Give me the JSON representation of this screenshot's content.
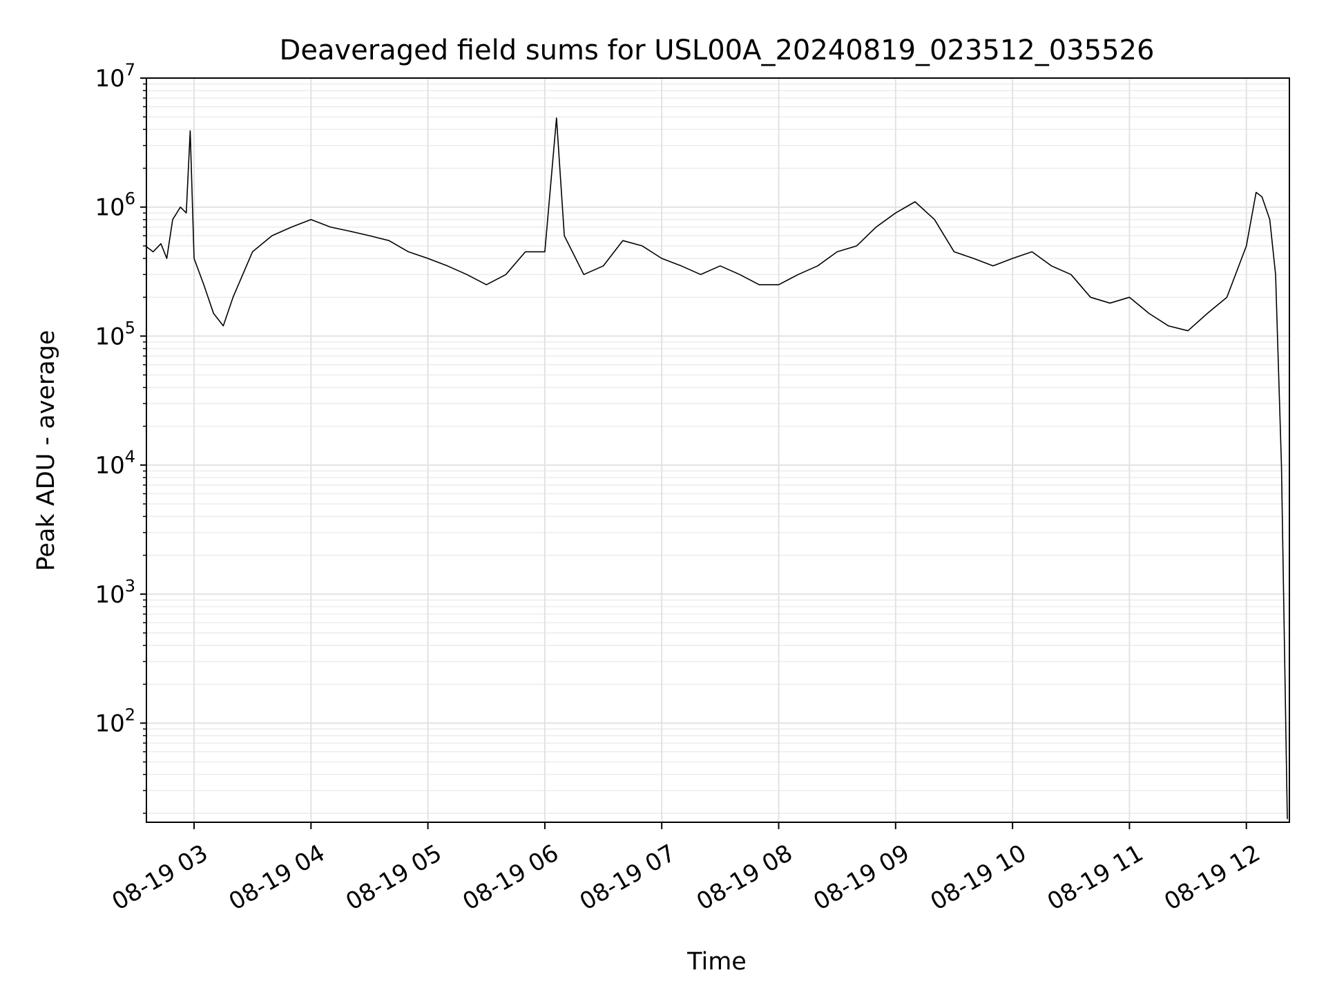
{
  "chart_data": {
    "type": "line",
    "title": "Deaveraged field sums for USL00A_20240819_023512_035526",
    "xlabel": "Time",
    "ylabel": "Peak ADU - average",
    "y_scale": "log",
    "ylim": [
      18,
      10000000
    ],
    "xlim": [
      "2024-08-19 02:35",
      "2024-08-19 12:25"
    ],
    "grid": "on (major and minor)",
    "x_tick_labels": [
      "08-19 03",
      "08-19 04",
      "08-19 05",
      "08-19 06",
      "08-19 07",
      "08-19 08",
      "08-19 09",
      "08-19 10",
      "08-19 11",
      "08-19 12"
    ],
    "y_tick_labels": [
      {
        "base": "10",
        "exp": "2"
      },
      {
        "base": "10",
        "exp": "3"
      },
      {
        "base": "10",
        "exp": "4"
      },
      {
        "base": "10",
        "exp": "5"
      },
      {
        "base": "10",
        "exp": "6"
      },
      {
        "base": "10",
        "exp": "7"
      }
    ],
    "series": [
      {
        "color": "#000000",
        "points": [
          [
            "2024-08-19 02:35",
            500000
          ],
          [
            "2024-08-19 02:39",
            450000
          ],
          [
            "2024-08-19 02:43",
            520000
          ],
          [
            "2024-08-19 02:46",
            400000
          ],
          [
            "2024-08-19 02:49",
            800000
          ],
          [
            "2024-08-19 02:53",
            1000000
          ],
          [
            "2024-08-19 02:56",
            900000
          ],
          [
            "2024-08-19 02:58",
            3900000
          ],
          [
            "2024-08-19 03:00",
            400000
          ],
          [
            "2024-08-19 03:05",
            250000
          ],
          [
            "2024-08-19 03:10",
            150000
          ],
          [
            "2024-08-19 03:15",
            120000
          ],
          [
            "2024-08-19 03:20",
            200000
          ],
          [
            "2024-08-19 03:25",
            300000
          ],
          [
            "2024-08-19 03:30",
            450000
          ],
          [
            "2024-08-19 03:40",
            600000
          ],
          [
            "2024-08-19 03:50",
            700000
          ],
          [
            "2024-08-19 04:00",
            800000
          ],
          [
            "2024-08-19 04:10",
            700000
          ],
          [
            "2024-08-19 04:20",
            650000
          ],
          [
            "2024-08-19 04:30",
            600000
          ],
          [
            "2024-08-19 04:40",
            550000
          ],
          [
            "2024-08-19 04:50",
            450000
          ],
          [
            "2024-08-19 05:00",
            400000
          ],
          [
            "2024-08-19 05:10",
            350000
          ],
          [
            "2024-08-19 05:20",
            300000
          ],
          [
            "2024-08-19 05:30",
            250000
          ],
          [
            "2024-08-19 05:40",
            300000
          ],
          [
            "2024-08-19 05:50",
            450000
          ],
          [
            "2024-08-19 06:00",
            450000
          ],
          [
            "2024-08-19 06:06",
            4900000
          ],
          [
            "2024-08-19 06:10",
            600000
          ],
          [
            "2024-08-19 06:20",
            300000
          ],
          [
            "2024-08-19 06:30",
            350000
          ],
          [
            "2024-08-19 06:40",
            550000
          ],
          [
            "2024-08-19 06:50",
            500000
          ],
          [
            "2024-08-19 07:00",
            400000
          ],
          [
            "2024-08-19 07:10",
            350000
          ],
          [
            "2024-08-19 07:20",
            300000
          ],
          [
            "2024-08-19 07:30",
            350000
          ],
          [
            "2024-08-19 07:40",
            300000
          ],
          [
            "2024-08-19 07:50",
            250000
          ],
          [
            "2024-08-19 08:00",
            250000
          ],
          [
            "2024-08-19 08:10",
            300000
          ],
          [
            "2024-08-19 08:20",
            350000
          ],
          [
            "2024-08-19 08:30",
            450000
          ],
          [
            "2024-08-19 08:40",
            500000
          ],
          [
            "2024-08-19 08:50",
            700000
          ],
          [
            "2024-08-19 09:00",
            900000
          ],
          [
            "2024-08-19 09:10",
            1100000
          ],
          [
            "2024-08-19 09:20",
            800000
          ],
          [
            "2024-08-19 09:30",
            450000
          ],
          [
            "2024-08-19 09:40",
            400000
          ],
          [
            "2024-08-19 09:50",
            350000
          ],
          [
            "2024-08-19 10:00",
            400000
          ],
          [
            "2024-08-19 10:10",
            450000
          ],
          [
            "2024-08-19 10:20",
            350000
          ],
          [
            "2024-08-19 10:30",
            300000
          ],
          [
            "2024-08-19 10:40",
            200000
          ],
          [
            "2024-08-19 10:50",
            180000
          ],
          [
            "2024-08-19 11:00",
            200000
          ],
          [
            "2024-08-19 11:10",
            150000
          ],
          [
            "2024-08-19 11:20",
            120000
          ],
          [
            "2024-08-19 11:30",
            110000
          ],
          [
            "2024-08-19 11:40",
            150000
          ],
          [
            "2024-08-19 11:50",
            200000
          ],
          [
            "2024-08-19 12:00",
            500000
          ],
          [
            "2024-08-19 12:05",
            1300000
          ],
          [
            "2024-08-19 12:08",
            1200000
          ],
          [
            "2024-08-19 12:12",
            800000
          ],
          [
            "2024-08-19 12:15",
            300000
          ],
          [
            "2024-08-19 12:18",
            10000
          ],
          [
            "2024-08-19 12:21",
            18
          ]
        ]
      }
    ]
  }
}
